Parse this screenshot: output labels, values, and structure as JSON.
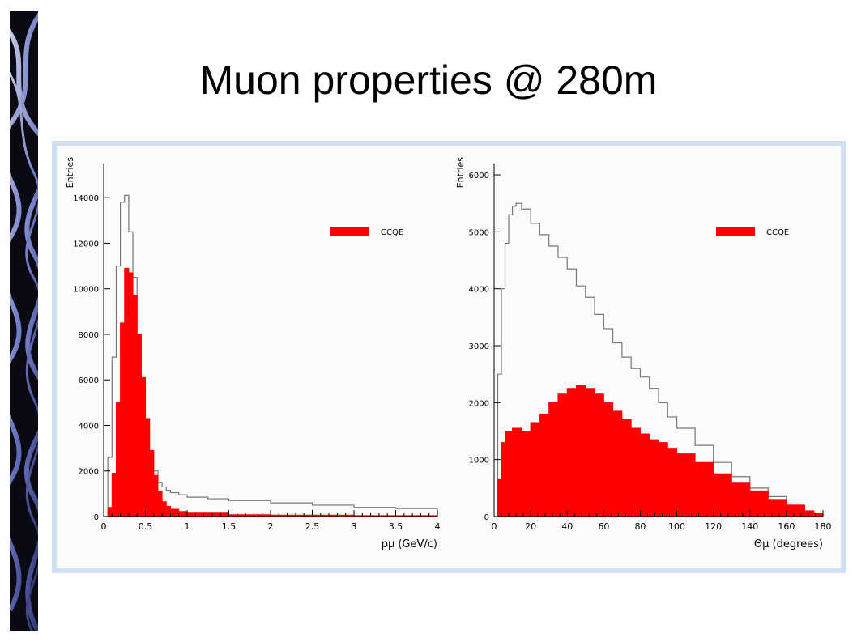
{
  "slide": {
    "title": "Muon properties @ 280m"
  },
  "colors": {
    "fill": "#ff0000",
    "outline": "#777777",
    "frame": "#cfe0f0",
    "strip": "#0a0a14"
  },
  "chart_data": [
    {
      "type": "bar",
      "xlabel": "pμ (GeV/c)",
      "ylabel": "Entries",
      "xlim": [
        0,
        4
      ],
      "ylim": [
        0,
        15500
      ],
      "xticks": [
        "0",
        "0.5",
        "1",
        "1.5",
        "2",
        "2.5",
        "3",
        "3.5",
        "4"
      ],
      "yticks": [
        "0",
        "2000",
        "4000",
        "6000",
        "8000",
        "10000",
        "12000",
        "14000"
      ],
      "legend": {
        "position": "top-right",
        "entries": [
          "CCQE"
        ]
      },
      "series": [
        {
          "style": "outline",
          "x": [
            0,
            0.05,
            0.1,
            0.15,
            0.2,
            0.25,
            0.3,
            0.35,
            0.4,
            0.45,
            0.5,
            0.55,
            0.6,
            0.65,
            0.7,
            0.75,
            0.8,
            0.9,
            1.0,
            1.25,
            1.5,
            2.0,
            2.5,
            3.0,
            3.5,
            4.0
          ],
          "y": [
            0,
            2600,
            7000,
            11000,
            13800,
            14100,
            12500,
            10500,
            8000,
            5800,
            4000,
            2800,
            2000,
            1500,
            1300,
            1150,
            1050,
            950,
            850,
            780,
            700,
            600,
            500,
            400,
            350,
            300
          ]
        },
        {
          "name": "CCQE",
          "style": "filled",
          "x": [
            0,
            0.05,
            0.1,
            0.15,
            0.2,
            0.25,
            0.3,
            0.35,
            0.4,
            0.45,
            0.5,
            0.55,
            0.6,
            0.65,
            0.7,
            0.75,
            0.8,
            0.9,
            1.0,
            1.5,
            2.0,
            3.0,
            4.0
          ],
          "y": [
            0,
            400,
            1900,
            5000,
            8500,
            10900,
            10700,
            9700,
            8000,
            6100,
            4300,
            2900,
            1800,
            1100,
            650,
            450,
            320,
            220,
            150,
            80,
            60,
            40,
            30
          ]
        }
      ]
    },
    {
      "type": "bar",
      "xlabel": "Θμ (degrees)",
      "ylabel": "Entries",
      "xlim": [
        0,
        180
      ],
      "ylim": [
        0,
        6200
      ],
      "xticks": [
        "0",
        "20",
        "40",
        "60",
        "80",
        "100",
        "120",
        "140",
        "160",
        "180"
      ],
      "yticks": [
        "0",
        "1000",
        "2000",
        "3000",
        "4000",
        "5000",
        "6000"
      ],
      "legend": {
        "position": "top-right",
        "entries": [
          "CCQE"
        ]
      },
      "series": [
        {
          "style": "outline",
          "x": [
            0,
            2,
            4,
            6,
            8,
            10,
            12,
            15,
            20,
            25,
            30,
            35,
            40,
            45,
            50,
            55,
            60,
            65,
            70,
            75,
            80,
            85,
            90,
            95,
            100,
            110,
            120,
            130,
            140,
            150,
            160,
            170,
            175,
            180
          ],
          "y": [
            0,
            2500,
            4000,
            4800,
            5300,
            5450,
            5500,
            5400,
            5150,
            4950,
            4750,
            4550,
            4350,
            4050,
            3850,
            3550,
            3300,
            3050,
            2800,
            2600,
            2450,
            2250,
            2000,
            1750,
            1550,
            1250,
            950,
            700,
            500,
            350,
            200,
            100,
            50,
            0
          ]
        },
        {
          "name": "CCQE",
          "style": "filled",
          "x": [
            0,
            2,
            4,
            6,
            10,
            15,
            20,
            25,
            30,
            35,
            40,
            45,
            50,
            55,
            60,
            65,
            70,
            75,
            80,
            85,
            90,
            95,
            100,
            110,
            120,
            130,
            140,
            150,
            160,
            170,
            175,
            180
          ],
          "y": [
            0,
            650,
            1300,
            1500,
            1550,
            1500,
            1650,
            1800,
            2000,
            2150,
            2250,
            2300,
            2250,
            2150,
            2000,
            1850,
            1700,
            1550,
            1450,
            1350,
            1300,
            1200,
            1100,
            950,
            750,
            600,
            450,
            300,
            200,
            100,
            50,
            0
          ]
        }
      ]
    }
  ]
}
